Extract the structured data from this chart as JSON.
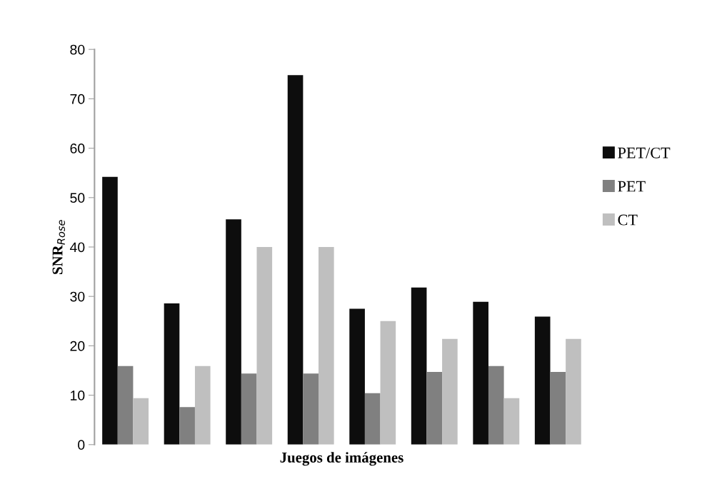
{
  "chart_data": {
    "type": "bar",
    "xlabel": "Juegos de imágenes",
    "ylabel": "SNR$_{Rose}$",
    "categories": [
      null,
      null,
      null,
      null,
      null,
      null,
      null,
      null
    ],
    "series": [
      {
        "name": "PET/CT",
        "color": "#0d0d0d",
        "values": [
          54.2,
          28.6,
          45.6,
          74.8,
          27.5,
          31.8,
          28.9,
          25.9
        ]
      },
      {
        "name": "PET",
        "color": "#808080",
        "values": [
          15.9,
          7.6,
          14.4,
          14.4,
          10.4,
          14.7,
          15.9,
          14.7
        ]
      },
      {
        "name": "CT",
        "color": "#bfbfbf",
        "values": [
          9.4,
          15.9,
          40.0,
          40.0,
          25.0,
          21.4,
          9.4,
          21.4
        ]
      }
    ],
    "ylim": [
      0,
      80
    ],
    "yticks": [
      0,
      10,
      20,
      30,
      40,
      50,
      60,
      70,
      80
    ],
    "grid": false,
    "legend": "right"
  }
}
